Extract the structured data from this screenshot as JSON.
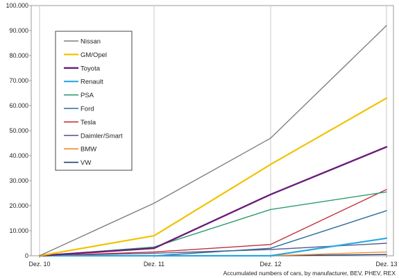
{
  "chart_data": {
    "type": "line",
    "title": "",
    "xlabel": "Accumulated numbers of cars, by manufacturer, BEV, PHEV, REX",
    "ylabel": "",
    "categories": [
      "Dez. 10",
      "Dez. 11",
      "Dez. 12",
      "Dez. 13"
    ],
    "ylim": [
      0,
      100000
    ],
    "yticks": [
      0,
      10000,
      20000,
      30000,
      40000,
      50000,
      60000,
      70000,
      80000,
      90000,
      100000
    ],
    "ytick_labels": [
      "0",
      "10.000",
      "20.000",
      "30.000",
      "40.000",
      "50.000",
      "60.000",
      "70.000",
      "80.000",
      "90.000",
      "100.000"
    ],
    "grid": "vertical lines at categories",
    "legend_placement": "upper-left",
    "series": [
      {
        "name": "Nissan",
        "color": "#7f7f7f",
        "values": [
          0,
          21000,
          47000,
          92000
        ]
      },
      {
        "name": "GM/Opel",
        "color": "#f2c200",
        "values": [
          0,
          8000,
          36500,
          63000
        ]
      },
      {
        "name": "Toyota",
        "color": "#6a1d7a",
        "values": [
          0,
          3000,
          24500,
          43500
        ]
      },
      {
        "name": "Renault",
        "color": "#29a8e0",
        "values": [
          0,
          0,
          0,
          7000
        ]
      },
      {
        "name": "PSA",
        "color": "#2e9a6b",
        "values": [
          0,
          3500,
          18500,
          25500
        ]
      },
      {
        "name": "Ford",
        "color": "#2b6c9c",
        "values": [
          0,
          0,
          3000,
          18000
        ]
      },
      {
        "name": "Tesla",
        "color": "#c0303a",
        "values": [
          0,
          1500,
          4500,
          26500
        ]
      },
      {
        "name": "Daimler/Smart",
        "color": "#5a5f8f",
        "values": [
          0,
          1000,
          2500,
          5000
        ]
      },
      {
        "name": "BMW",
        "color": "#f28c28",
        "values": [
          0,
          0,
          0,
          1500
        ]
      },
      {
        "name": "VW",
        "color": "#1f3f78",
        "values": [
          0,
          0,
          0,
          500
        ]
      }
    ]
  }
}
